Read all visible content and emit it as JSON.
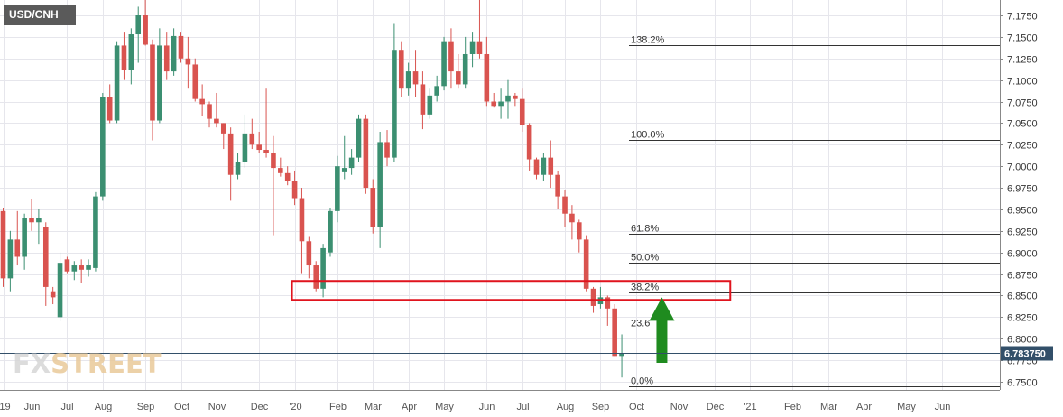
{
  "symbol": "USD/CNH",
  "watermark": {
    "part1": "FX",
    "part2": "STREET"
  },
  "colors": {
    "up": "#3b8f71",
    "down": "#d9534f",
    "grid": "#e6e6ec",
    "last_price_bg": "#324f69",
    "zone_border": "#e0141e",
    "arrow": "#1f8b1f",
    "fib": "#333333"
  },
  "chart_data": {
    "type": "candlestick",
    "timeframe": "weekly",
    "ylim": [
      6.742,
      7.195
    ],
    "yticks": [
      "7.1750",
      "7.1500",
      "7.1250",
      "7.1000",
      "7.0750",
      "7.0500",
      "7.0250",
      "7.0000",
      "6.9750",
      "6.9500",
      "6.9250",
      "6.9000",
      "6.8750",
      "6.8500",
      "6.8250",
      "6.8000",
      "6.7750",
      "6.7500"
    ],
    "xticks": [
      {
        "label": "'19",
        "i": 0
      },
      {
        "label": "Jun",
        "i": 4
      },
      {
        "label": "Jul",
        "i": 9
      },
      {
        "label": "Aug",
        "i": 14
      },
      {
        "label": "Sep",
        "i": 20
      },
      {
        "label": "Oct",
        "i": 25
      },
      {
        "label": "Nov",
        "i": 30
      },
      {
        "label": "Dec",
        "i": 36
      },
      {
        "label": "'20",
        "i": 41
      },
      {
        "label": "Feb",
        "i": 47
      },
      {
        "label": "Mar",
        "i": 52
      },
      {
        "label": "Apr",
        "i": 57
      },
      {
        "label": "May",
        "i": 62
      },
      {
        "label": "Jun",
        "i": 68
      },
      {
        "label": "Jul",
        "i": 73
      },
      {
        "label": "Aug",
        "i": 79
      },
      {
        "label": "Sep",
        "i": 84
      },
      {
        "label": "Oct",
        "i": 89
      },
      {
        "label": "Nov",
        "i": 95
      },
      {
        "label": "Dec",
        "i": 100
      },
      {
        "label": "'21",
        "i": 105
      },
      {
        "label": "Feb",
        "i": 111
      },
      {
        "label": "Mar",
        "i": 116
      },
      {
        "label": "Apr",
        "i": 121
      },
      {
        "label": "May",
        "i": 127
      },
      {
        "label": "Jun",
        "i": 132
      }
    ],
    "candles": [
      [
        6.948,
        6.952,
        6.86,
        6.87
      ],
      [
        6.87,
        6.925,
        6.855,
        6.915
      ],
      [
        6.915,
        6.948,
        6.885,
        6.895
      ],
      [
        6.895,
        6.945,
        6.88,
        6.94
      ],
      [
        6.94,
        6.962,
        6.925,
        6.935
      ],
      [
        6.935,
        6.95,
        6.91,
        6.94
      ],
      [
        6.93,
        6.935,
        6.838,
        6.86
      ],
      [
        6.855,
        6.86,
        6.84,
        6.848
      ],
      [
        6.825,
        6.9,
        6.82,
        6.888
      ],
      [
        6.892,
        6.895,
        6.875,
        6.878
      ],
      [
        6.878,
        6.89,
        6.868,
        6.885
      ],
      [
        6.885,
        6.892,
        6.865,
        6.88
      ],
      [
        6.88,
        6.892,
        6.872,
        6.885
      ],
      [
        6.882,
        6.97,
        6.878,
        6.965
      ],
      [
        6.965,
        7.085,
        6.96,
        7.08
      ],
      [
        7.08,
        7.095,
        7.05,
        7.053
      ],
      [
        7.053,
        7.145,
        7.05,
        7.14
      ],
      [
        7.14,
        7.155,
        7.1,
        7.112
      ],
      [
        7.112,
        7.16,
        7.095,
        7.153
      ],
      [
        7.153,
        7.185,
        7.12,
        7.175
      ],
      [
        7.175,
        7.195,
        7.14,
        7.141
      ],
      [
        7.141,
        7.147,
        7.03,
        7.053
      ],
      [
        7.053,
        7.16,
        7.05,
        7.14
      ],
      [
        7.14,
        7.155,
        7.1,
        7.11
      ],
      [
        7.11,
        7.16,
        7.105,
        7.151
      ],
      [
        7.151,
        7.155,
        7.12,
        7.125
      ],
      [
        7.125,
        7.15,
        7.09,
        7.118
      ],
      [
        7.118,
        7.125,
        7.075,
        7.078
      ],
      [
        7.078,
        7.095,
        7.058,
        7.072
      ],
      [
        7.072,
        7.075,
        7.045,
        7.055
      ],
      [
        7.055,
        7.085,
        7.045,
        7.05
      ],
      [
        7.05,
        7.05,
        7.02,
        7.038
      ],
      [
        7.038,
        7.045,
        6.96,
        6.99
      ],
      [
        6.99,
        7.015,
        6.985,
        7.005
      ],
      [
        7.005,
        7.06,
        6.998,
        7.038
      ],
      [
        7.038,
        7.055,
        7.02,
        7.025
      ],
      [
        7.025,
        7.04,
        7.015,
        7.019
      ],
      [
        7.019,
        7.09,
        7.01,
        7.015
      ],
      [
        7.015,
        7.035,
        6.92,
        6.998
      ],
      [
        6.998,
        7.01,
        6.988,
        6.992
      ],
      [
        6.992,
        7.0,
        6.978,
        6.983
      ],
      [
        6.983,
        6.995,
        6.955,
        6.963
      ],
      [
        6.963,
        6.975,
        6.875,
        6.913
      ],
      [
        6.913,
        6.918,
        6.87,
        6.885
      ],
      [
        6.885,
        6.89,
        6.855,
        6.858
      ],
      [
        6.858,
        6.91,
        6.848,
        6.905
      ],
      [
        6.9,
        6.952,
        6.895,
        6.948
      ],
      [
        6.948,
        7.012,
        6.935,
        7.0
      ],
      [
        6.993,
        7.035,
        6.985,
        6.998
      ],
      [
        6.998,
        7.02,
        6.99,
        7.01
      ],
      [
        7.01,
        7.06,
        7.005,
        7.055
      ],
      [
        7.055,
        7.06,
        6.968,
        6.975
      ],
      [
        6.975,
        6.985,
        6.922,
        6.93
      ],
      [
        6.93,
        7.04,
        6.905,
        7.028
      ],
      [
        7.028,
        7.042,
        7.0,
        7.01
      ],
      [
        7.01,
        7.165,
        7.005,
        7.135
      ],
      [
        7.135,
        7.145,
        7.08,
        7.09
      ],
      [
        7.09,
        7.12,
        7.082,
        7.11
      ],
      [
        7.11,
        7.135,
        7.08,
        7.095
      ],
      [
        7.095,
        7.11,
        7.043,
        7.06
      ],
      [
        7.06,
        7.09,
        7.055,
        7.082
      ],
      [
        7.082,
        7.105,
        7.075,
        7.093
      ],
      [
        7.093,
        7.15,
        7.088,
        7.145
      ],
      [
        7.145,
        7.16,
        7.09,
        7.11
      ],
      [
        7.11,
        7.13,
        7.09,
        7.095
      ],
      [
        7.095,
        7.15,
        7.09,
        7.13
      ],
      [
        7.13,
        7.155,
        7.115,
        7.145
      ],
      [
        7.145,
        7.195,
        7.125,
        7.13
      ],
      [
        7.13,
        7.15,
        7.07,
        7.075
      ],
      [
        7.075,
        7.085,
        7.068,
        7.07
      ],
      [
        7.07,
        7.09,
        7.055,
        7.075
      ],
      [
        7.075,
        7.1,
        7.055,
        7.082
      ],
      [
        7.082,
        7.085,
        7.07,
        7.078
      ],
      [
        7.078,
        7.09,
        7.04,
        7.048
      ],
      [
        7.048,
        7.05,
        6.995,
        7.008
      ],
      [
        7.008,
        7.01,
        6.985,
        6.99
      ],
      [
        6.99,
        7.015,
        6.983,
        7.01
      ],
      [
        7.01,
        7.03,
        6.975,
        6.99
      ],
      [
        6.99,
        6.995,
        6.95,
        6.965
      ],
      [
        6.965,
        6.972,
        6.93,
        6.945
      ],
      [
        6.945,
        6.955,
        6.915,
        6.935
      ],
      [
        6.935,
        6.938,
        6.9,
        6.915
      ],
      [
        6.915,
        6.92,
        6.855,
        6.858
      ],
      [
        6.858,
        6.86,
        6.83,
        6.838
      ],
      [
        6.84,
        6.86,
        6.835,
        6.848
      ],
      [
        6.848,
        6.85,
        6.815,
        6.835
      ],
      [
        6.835,
        6.84,
        6.78,
        6.78
      ],
      [
        6.78,
        6.805,
        6.755,
        6.783
      ]
    ],
    "fib_levels": [
      {
        "label": "138.2%",
        "value": 7.1405
      },
      {
        "label": "100.0%",
        "value": 7.031
      },
      {
        "label": "61.8%",
        "value": 6.9215
      },
      {
        "label": "50.0%",
        "value": 6.8878
      },
      {
        "label": "38.2%",
        "value": 6.854
      },
      {
        "label": "23.6",
        "value": 6.812
      },
      {
        "label": "0.0%",
        "value": 6.7445
      }
    ],
    "last_price": "6.783750",
    "last_price_value": 6.78375,
    "support_zone": {
      "from_index": 41,
      "to_index": 102,
      "low": 6.845,
      "high": 6.867
    },
    "arrow": {
      "index": 92,
      "from": 6.772,
      "to": 6.848
    }
  }
}
